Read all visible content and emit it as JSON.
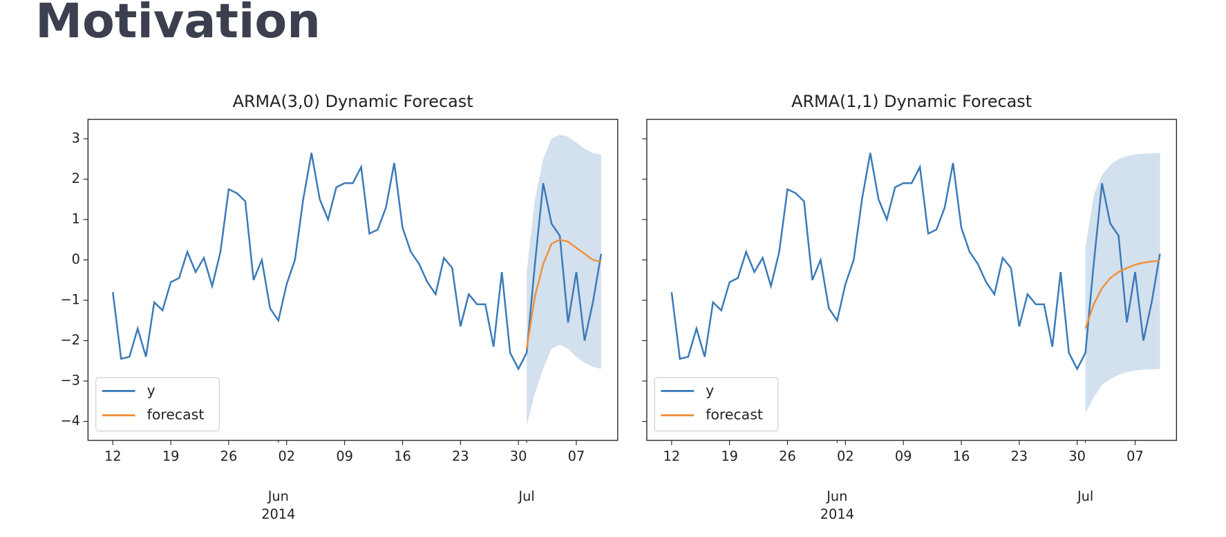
{
  "header": {
    "title": "Motivation"
  },
  "chart_data": [
    {
      "type": "line",
      "title": "ARMA(3,0) Dynamic Forecast",
      "x": [
        "2014-05-12",
        "2014-05-13",
        "2014-05-14",
        "2014-05-15",
        "2014-05-16",
        "2014-05-17",
        "2014-05-18",
        "2014-05-19",
        "2014-05-20",
        "2014-05-21",
        "2014-05-22",
        "2014-05-23",
        "2014-05-24",
        "2014-05-25",
        "2014-05-26",
        "2014-05-27",
        "2014-05-28",
        "2014-05-29",
        "2014-05-30",
        "2014-05-31",
        "2014-06-01",
        "2014-06-02",
        "2014-06-03",
        "2014-06-04",
        "2014-06-05",
        "2014-06-06",
        "2014-06-07",
        "2014-06-08",
        "2014-06-09",
        "2014-06-10",
        "2014-06-11",
        "2014-06-12",
        "2014-06-13",
        "2014-06-14",
        "2014-06-15",
        "2014-06-16",
        "2014-06-17",
        "2014-06-18",
        "2014-06-19",
        "2014-06-20",
        "2014-06-21",
        "2014-06-22",
        "2014-06-23",
        "2014-06-24",
        "2014-06-25",
        "2014-06-26",
        "2014-06-27",
        "2014-06-28",
        "2014-06-29",
        "2014-06-30",
        "2014-07-01",
        "2014-07-02",
        "2014-07-03",
        "2014-07-04",
        "2014-07-05",
        "2014-07-06",
        "2014-07-07",
        "2014-07-08",
        "2014-07-09",
        "2014-07-10"
      ],
      "series": [
        {
          "name": "y",
          "color": "#3a7ab8",
          "values": [
            -0.8,
            -2.45,
            -2.4,
            -1.7,
            -2.4,
            -1.05,
            -1.25,
            -0.55,
            -0.45,
            0.2,
            -0.3,
            0.05,
            -0.65,
            0.2,
            1.75,
            1.65,
            1.45,
            -0.5,
            0.0,
            -1.2,
            -1.5,
            -0.6,
            0.0,
            1.5,
            2.65,
            1.5,
            1.0,
            1.8,
            1.9,
            1.9,
            2.3,
            0.65,
            0.75,
            1.3,
            2.4,
            0.8,
            0.2,
            -0.1,
            -0.55,
            -0.85,
            0.05,
            -0.2,
            -1.65,
            -0.85,
            -1.1,
            -1.1,
            -2.15,
            -0.3,
            -2.3,
            -2.7,
            -2.3,
            -0.1,
            1.9,
            0.9,
            0.6,
            -1.55,
            -0.3,
            -2.0,
            -1.05,
            0.15
          ]
        },
        {
          "name": "forecast",
          "color": "#f0913a",
          "values": [
            null,
            null,
            null,
            null,
            null,
            null,
            null,
            null,
            null,
            null,
            null,
            null,
            null,
            null,
            null,
            null,
            null,
            null,
            null,
            null,
            null,
            null,
            null,
            null,
            null,
            null,
            null,
            null,
            null,
            null,
            null,
            null,
            null,
            null,
            null,
            null,
            null,
            null,
            null,
            null,
            null,
            null,
            null,
            null,
            null,
            null,
            null,
            null,
            null,
            null,
            -2.2,
            -0.9,
            -0.1,
            0.4,
            0.5,
            0.45,
            0.3,
            0.15,
            0.0,
            -0.05
          ]
        }
      ],
      "band": {
        "color": "#d3e0ee",
        "lower": [
          null,
          null,
          null,
          null,
          null,
          null,
          null,
          null,
          null,
          null,
          null,
          null,
          null,
          null,
          null,
          null,
          null,
          null,
          null,
          null,
          null,
          null,
          null,
          null,
          null,
          null,
          null,
          null,
          null,
          null,
          null,
          null,
          null,
          null,
          null,
          null,
          null,
          null,
          null,
          null,
          null,
          null,
          null,
          null,
          null,
          null,
          null,
          null,
          null,
          null,
          -4.1,
          -3.3,
          -2.7,
          -2.2,
          -2.1,
          -2.2,
          -2.4,
          -2.55,
          -2.65,
          -2.7
        ],
        "upper": [
          null,
          null,
          null,
          null,
          null,
          null,
          null,
          null,
          null,
          null,
          null,
          null,
          null,
          null,
          null,
          null,
          null,
          null,
          null,
          null,
          null,
          null,
          null,
          null,
          null,
          null,
          null,
          null,
          null,
          null,
          null,
          null,
          null,
          null,
          null,
          null,
          null,
          null,
          null,
          null,
          null,
          null,
          null,
          null,
          null,
          null,
          null,
          null,
          null,
          null,
          -0.3,
          1.5,
          2.5,
          3.0,
          3.1,
          3.05,
          2.9,
          2.75,
          2.65,
          2.6
        ]
      },
      "xlim": [
        "2014-05-09",
        "2014-07-12"
      ],
      "xticks": [
        {
          "value": "2014-05-12",
          "label": "12"
        },
        {
          "value": "2014-05-19",
          "label": "19"
        },
        {
          "value": "2014-05-26",
          "label": "26"
        },
        {
          "value": "2014-06-02",
          "label": "02"
        },
        {
          "value": "2014-06-09",
          "label": "09"
        },
        {
          "value": "2014-06-16",
          "label": "16"
        },
        {
          "value": "2014-06-23",
          "label": "23"
        },
        {
          "value": "2014-06-30",
          "label": "30"
        },
        {
          "value": "2014-07-07",
          "label": "07"
        }
      ],
      "month_ticks": [
        {
          "value": "2014-06-01",
          "label": "Jun"
        },
        {
          "value": "2014-07-01",
          "label": "Jul"
        }
      ],
      "year_ticks": [
        {
          "value": "2014-06-01",
          "label": "2014"
        }
      ],
      "ylim": [
        -4.47,
        3.48
      ],
      "yticks": [
        {
          "value": -4,
          "label": "−4"
        },
        {
          "value": -3,
          "label": "−3"
        },
        {
          "value": -2,
          "label": "−2"
        },
        {
          "value": -1,
          "label": "−1"
        },
        0,
        1,
        2,
        3
      ],
      "legend": "lower left"
    },
    {
      "type": "line",
      "title": "ARMA(1,1) Dynamic Forecast",
      "x": [
        "2014-05-12",
        "2014-05-13",
        "2014-05-14",
        "2014-05-15",
        "2014-05-16",
        "2014-05-17",
        "2014-05-18",
        "2014-05-19",
        "2014-05-20",
        "2014-05-21",
        "2014-05-22",
        "2014-05-23",
        "2014-05-24",
        "2014-05-25",
        "2014-05-26",
        "2014-05-27",
        "2014-05-28",
        "2014-05-29",
        "2014-05-30",
        "2014-05-31",
        "2014-06-01",
        "2014-06-02",
        "2014-06-03",
        "2014-06-04",
        "2014-06-05",
        "2014-06-06",
        "2014-06-07",
        "2014-06-08",
        "2014-06-09",
        "2014-06-10",
        "2014-06-11",
        "2014-06-12",
        "2014-06-13",
        "2014-06-14",
        "2014-06-15",
        "2014-06-16",
        "2014-06-17",
        "2014-06-18",
        "2014-06-19",
        "2014-06-20",
        "2014-06-21",
        "2014-06-22",
        "2014-06-23",
        "2014-06-24",
        "2014-06-25",
        "2014-06-26",
        "2014-06-27",
        "2014-06-28",
        "2014-06-29",
        "2014-06-30",
        "2014-07-01",
        "2014-07-02",
        "2014-07-03",
        "2014-07-04",
        "2014-07-05",
        "2014-07-06",
        "2014-07-07",
        "2014-07-08",
        "2014-07-09",
        "2014-07-10"
      ],
      "series": [
        {
          "name": "y",
          "color": "#3a7ab8",
          "values": [
            -0.8,
            -2.45,
            -2.4,
            -1.7,
            -2.4,
            -1.05,
            -1.25,
            -0.55,
            -0.45,
            0.2,
            -0.3,
            0.05,
            -0.65,
            0.2,
            1.75,
            1.65,
            1.45,
            -0.5,
            0.0,
            -1.2,
            -1.5,
            -0.6,
            0.0,
            1.5,
            2.65,
            1.5,
            1.0,
            1.8,
            1.9,
            1.9,
            2.3,
            0.65,
            0.75,
            1.3,
            2.4,
            0.8,
            0.2,
            -0.1,
            -0.55,
            -0.85,
            0.05,
            -0.2,
            -1.65,
            -0.85,
            -1.1,
            -1.1,
            -2.15,
            -0.3,
            -2.3,
            -2.7,
            -2.3,
            -0.1,
            1.9,
            0.9,
            0.6,
            -1.55,
            -0.3,
            -2.0,
            -1.05,
            0.15
          ]
        },
        {
          "name": "forecast",
          "color": "#f0913a",
          "values": [
            null,
            null,
            null,
            null,
            null,
            null,
            null,
            null,
            null,
            null,
            null,
            null,
            null,
            null,
            null,
            null,
            null,
            null,
            null,
            null,
            null,
            null,
            null,
            null,
            null,
            null,
            null,
            null,
            null,
            null,
            null,
            null,
            null,
            null,
            null,
            null,
            null,
            null,
            null,
            null,
            null,
            null,
            null,
            null,
            null,
            null,
            null,
            null,
            null,
            null,
            -1.7,
            -1.1,
            -0.7,
            -0.45,
            -0.3,
            -0.2,
            -0.12,
            -0.07,
            -0.04,
            -0.02
          ]
        }
      ],
      "band": {
        "color": "#d3e0ee",
        "lower": [
          null,
          null,
          null,
          null,
          null,
          null,
          null,
          null,
          null,
          null,
          null,
          null,
          null,
          null,
          null,
          null,
          null,
          null,
          null,
          null,
          null,
          null,
          null,
          null,
          null,
          null,
          null,
          null,
          null,
          null,
          null,
          null,
          null,
          null,
          null,
          null,
          null,
          null,
          null,
          null,
          null,
          null,
          null,
          null,
          null,
          null,
          null,
          null,
          null,
          null,
          -3.8,
          -3.4,
          -3.1,
          -2.95,
          -2.85,
          -2.78,
          -2.74,
          -2.72,
          -2.71,
          -2.7
        ],
        "upper": [
          null,
          null,
          null,
          null,
          null,
          null,
          null,
          null,
          null,
          null,
          null,
          null,
          null,
          null,
          null,
          null,
          null,
          null,
          null,
          null,
          null,
          null,
          null,
          null,
          null,
          null,
          null,
          null,
          null,
          null,
          null,
          null,
          null,
          null,
          null,
          null,
          null,
          null,
          null,
          null,
          null,
          null,
          null,
          null,
          null,
          null,
          null,
          null,
          null,
          null,
          0.3,
          1.6,
          2.1,
          2.35,
          2.5,
          2.57,
          2.61,
          2.63,
          2.64,
          2.65
        ]
      },
      "xlim": [
        "2014-05-09",
        "2014-07-12"
      ],
      "xticks": [
        {
          "value": "2014-05-12",
          "label": "12"
        },
        {
          "value": "2014-05-19",
          "label": "19"
        },
        {
          "value": "2014-05-26",
          "label": "26"
        },
        {
          "value": "2014-06-02",
          "label": "02"
        },
        {
          "value": "2014-06-09",
          "label": "09"
        },
        {
          "value": "2014-06-16",
          "label": "16"
        },
        {
          "value": "2014-06-23",
          "label": "23"
        },
        {
          "value": "2014-06-30",
          "label": "30"
        },
        {
          "value": "2014-07-07",
          "label": "07"
        }
      ],
      "month_ticks": [
        {
          "value": "2014-06-01",
          "label": "Jun"
        },
        {
          "value": "2014-07-01",
          "label": "Jul"
        }
      ],
      "year_ticks": [
        {
          "value": "2014-06-01",
          "label": "2014"
        }
      ],
      "ylim": [
        -4.47,
        3.48
      ],
      "yticks": [
        -4,
        -3,
        -2,
        -1,
        0,
        1,
        2,
        3
      ],
      "sharey": true,
      "legend": "lower left"
    }
  ]
}
